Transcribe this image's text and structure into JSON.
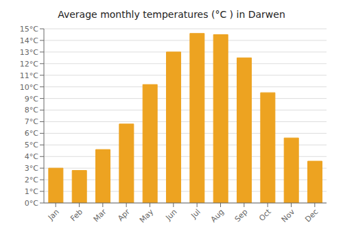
{
  "chart_data": {
    "type": "bar",
    "title": "Average monthly temperatures (°C ) in Darwen",
    "categories": [
      "Jan",
      "Feb",
      "Mar",
      "Apr",
      "May",
      "Jun",
      "Jul",
      "Aug",
      "Sep",
      "Oct",
      "Nov",
      "Dec"
    ],
    "values": [
      3.0,
      2.8,
      4.6,
      6.8,
      10.2,
      13.0,
      14.6,
      14.5,
      12.5,
      9.5,
      5.6,
      3.6
    ],
    "color": "#EDA321",
    "ylim": [
      0,
      15
    ],
    "yticks": [
      {
        "value": 0,
        "label": "0°C"
      },
      {
        "value": 1,
        "label": "1°C"
      },
      {
        "value": 2,
        "label": "2°C"
      },
      {
        "value": 3,
        "label": "3°C"
      },
      {
        "value": 4,
        "label": "4°C"
      },
      {
        "value": 5,
        "label": "5°C"
      },
      {
        "value": 6,
        "label": "6°C"
      },
      {
        "value": 7,
        "label": "7°C"
      },
      {
        "value": 8,
        "label": "8°C"
      },
      {
        "value": 9,
        "label": "9°C"
      },
      {
        "value": 10,
        "label": "10°C"
      },
      {
        "value": 11,
        "label": "11°C"
      },
      {
        "value": 12,
        "label": "12°C"
      },
      {
        "value": 13,
        "label": "13°C"
      },
      {
        "value": 14,
        "label": "14°C"
      },
      {
        "value": 15,
        "label": "15°C"
      }
    ],
    "grid": true
  }
}
